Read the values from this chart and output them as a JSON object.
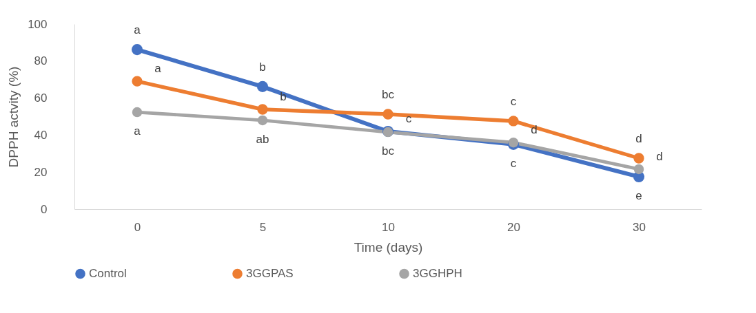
{
  "chart_data": {
    "type": "line",
    "xlabel": "Time (days)",
    "ylabel": "DPPH actvity (%)",
    "categories": [
      "0",
      "5",
      "10",
      "20",
      "30"
    ],
    "series": [
      {
        "name": "Control",
        "color": "#4472c4",
        "values": [
          86.2,
          66.2,
          42,
          35,
          17.5
        ]
      },
      {
        "name": "3GGPAS",
        "color": "#ed7d31",
        "values": [
          69.1,
          53.9,
          51.3,
          47.6,
          27.5
        ]
      },
      {
        "name": "3GGHPH",
        "color": "#a5a5a5",
        "values": [
          52.4,
          48,
          41.6,
          36,
          21.6
        ]
      }
    ],
    "ylim": [
      0,
      100
    ],
    "yticks": [
      0,
      20,
      40,
      60,
      80,
      100
    ],
    "grid": false,
    "legend": "bottom",
    "marker": "circle",
    "line_style": "solid",
    "annotations": [
      {
        "text": "a",
        "x": "0",
        "y": 86.2
      },
      {
        "text": "b",
        "x": "5",
        "y": 66.2
      },
      {
        "text": "c",
        "x": "10",
        "y": 42
      },
      {
        "text": "c",
        "x": "20",
        "y": 35
      },
      {
        "text": "e",
        "x": "30",
        "y": 17.5
      },
      {
        "text": "a",
        "x": "0",
        "y": 69.1
      },
      {
        "text": "b",
        "x": "5",
        "y": 53.9
      },
      {
        "text": "bc",
        "x": "10",
        "y": 51.3
      },
      {
        "text": "c",
        "x": "20",
        "y": 47.6
      },
      {
        "text": "d",
        "x": "30",
        "y": 27.5
      },
      {
        "text": "a",
        "x": "0",
        "y": 52.4
      },
      {
        "text": "ab",
        "x": "5",
        "y": 48
      },
      {
        "text": "bc",
        "x": "10",
        "y": 41.6
      },
      {
        "text": "d",
        "x": "20",
        "y": 36
      },
      {
        "text": "d",
        "x": "30",
        "y": 21.6
      }
    ]
  }
}
